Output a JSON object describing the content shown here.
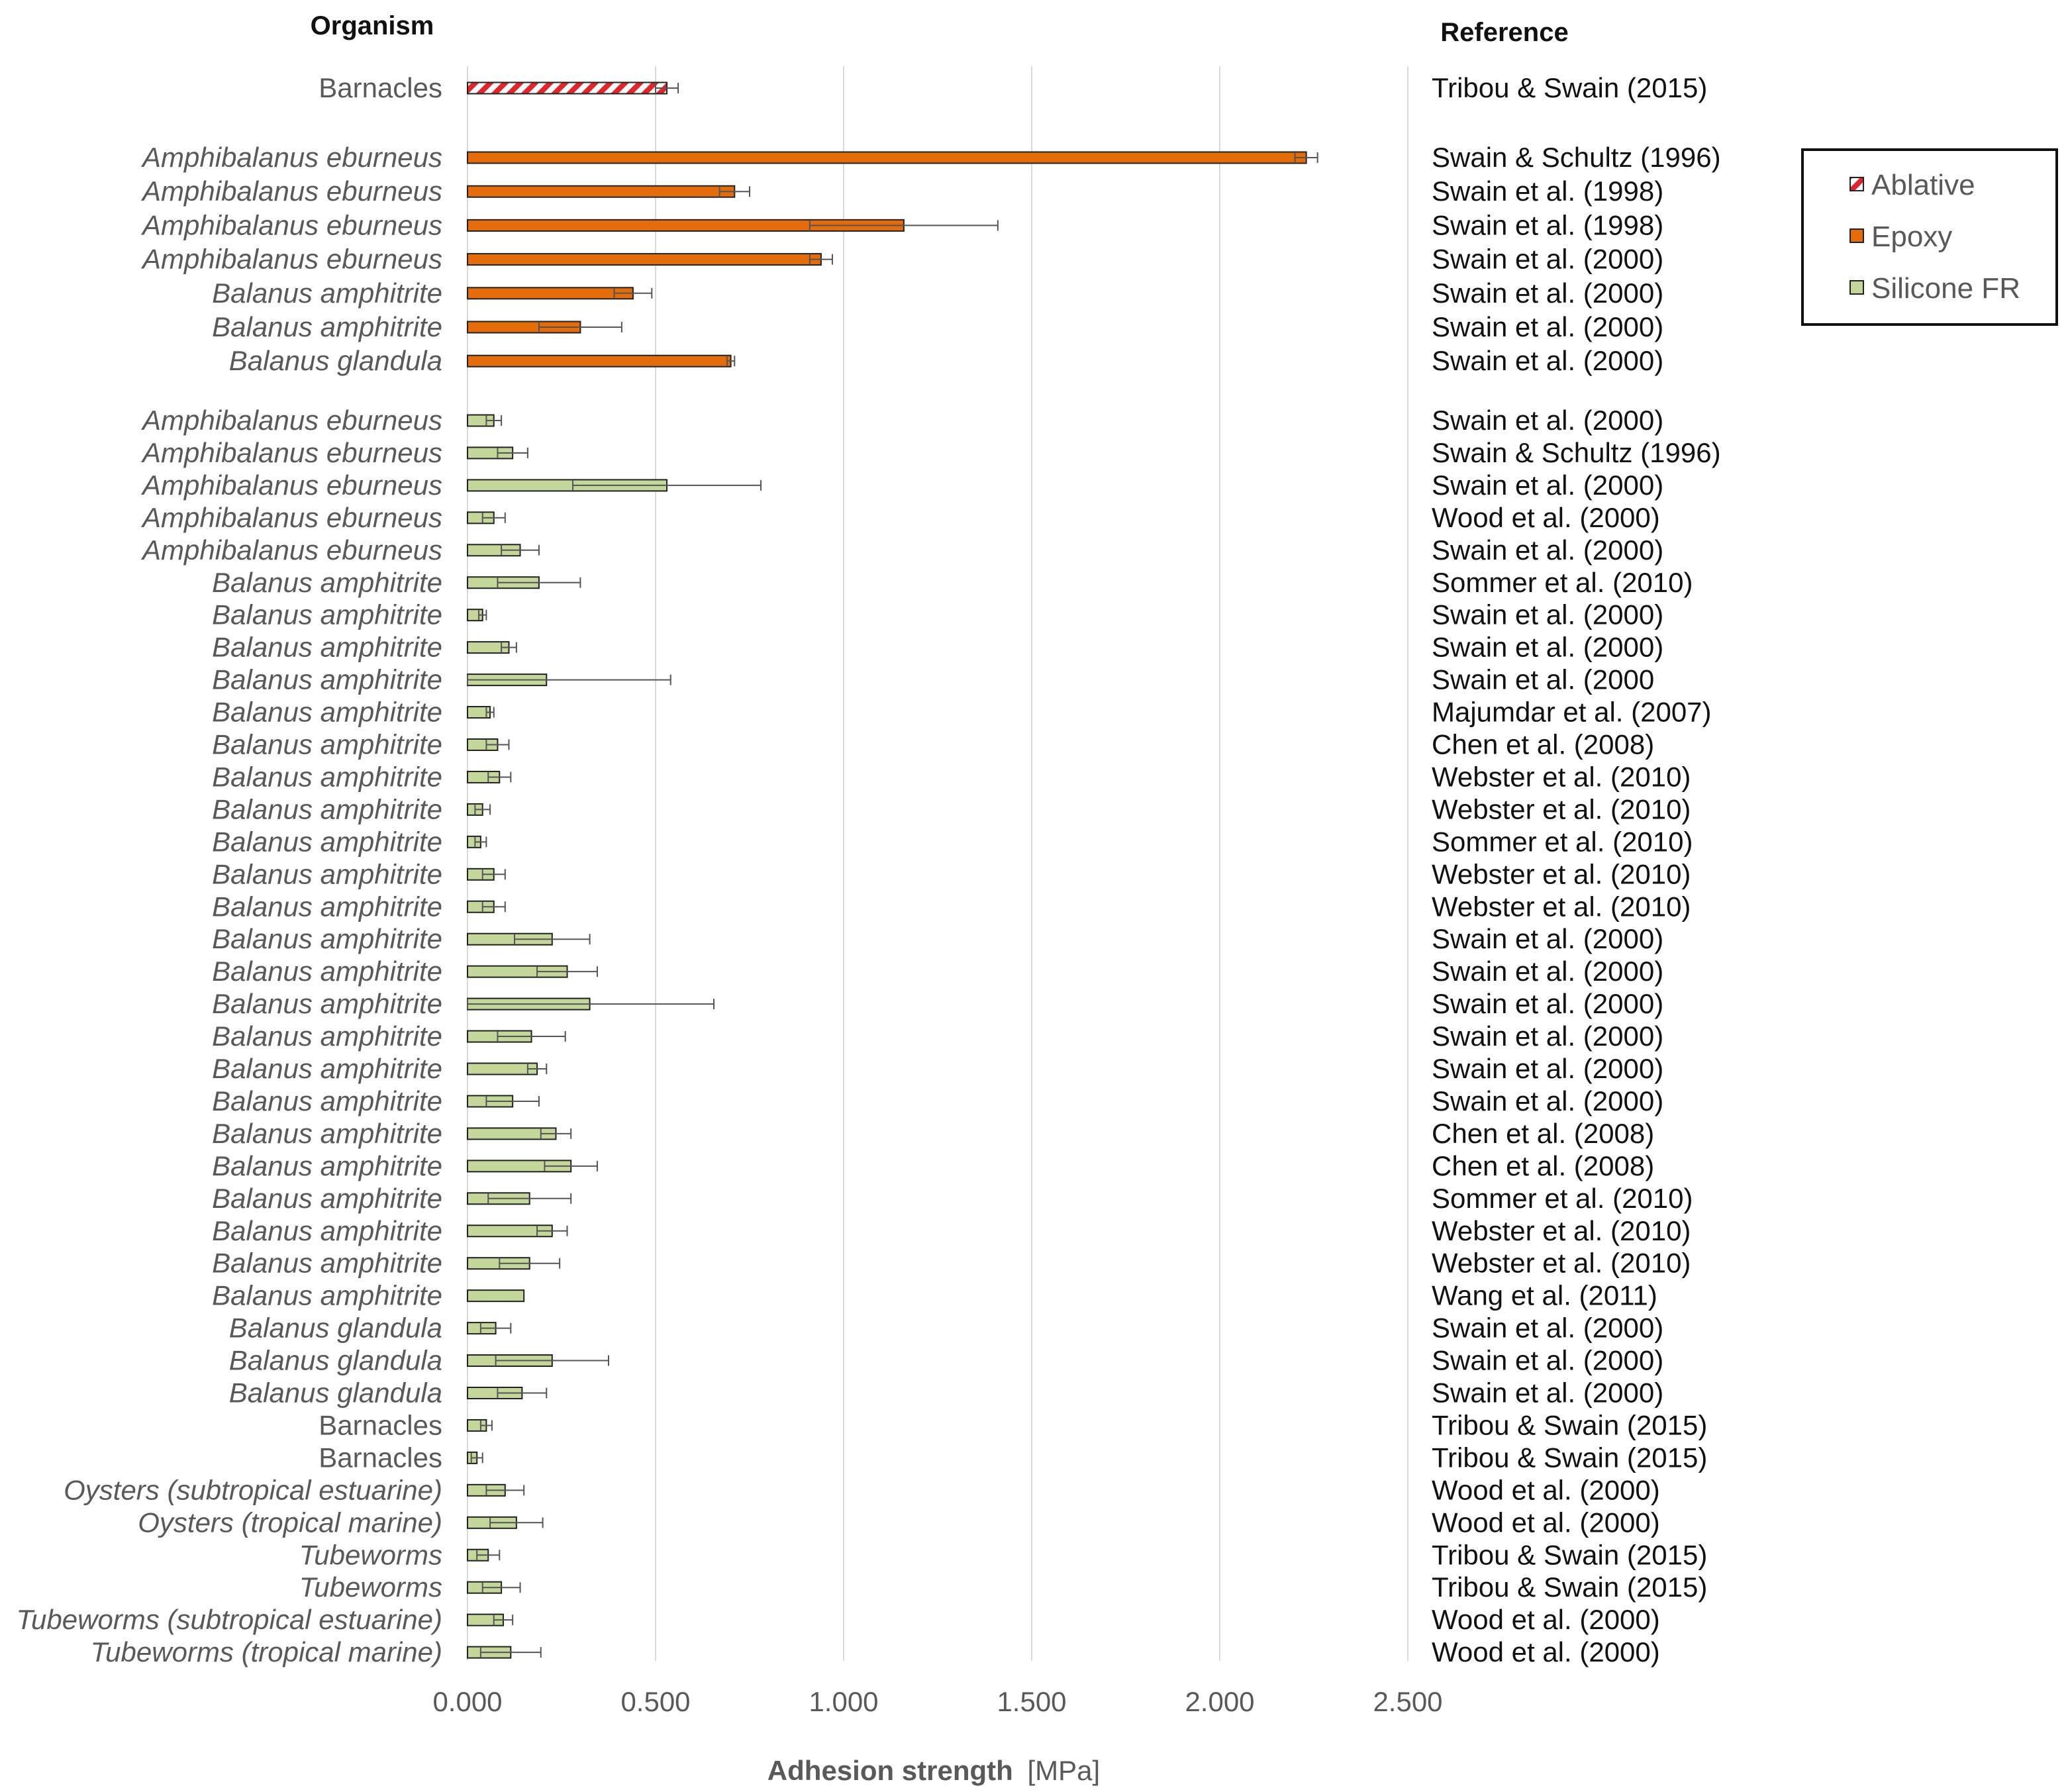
{
  "chart_data": {
    "type": "bar",
    "orientation": "horizontal",
    "headers": {
      "organism": "Organism",
      "reference": "Reference"
    },
    "xlabel_bold": "Adhesion strength",
    "xlabel_unit": "[MPa]",
    "xlim": [
      0,
      2.5
    ],
    "ticks": [
      "0.000",
      "0.500",
      "1.000",
      "1.500",
      "2.000",
      "2.500"
    ],
    "grid": true,
    "legend_position": "right",
    "colors": {
      "Ablative": "#e0262d",
      "Epoxy": "#e46c0a",
      "Silicone FR": "#c4d79b",
      "bar_edge": "#222222",
      "grid": "#d9d9d9",
      "error": "#555555"
    },
    "legend": [
      {
        "name": "Ablative",
        "icon": "hatched-square-icon"
      },
      {
        "name": "Epoxy",
        "icon": "orange-square-icon"
      },
      {
        "name": "Silicone FR",
        "icon": "green-square-icon"
      }
    ],
    "groups": [
      {
        "coating": "Ablative",
        "rows": [
          {
            "organism": "Barnacles",
            "italic": false,
            "value": 0.53,
            "error": 0.03,
            "reference": "Tribou & Swain (2015)"
          }
        ]
      },
      {
        "coating": "Epoxy",
        "rows": [
          {
            "organism": "Amphibalanus eburneus",
            "italic": true,
            "value": 2.23,
            "error": 0.03,
            "reference": "Swain & Schultz (1996)"
          },
          {
            "organism": "Amphibalanus eburneus",
            "italic": true,
            "value": 0.71,
            "error": 0.04,
            "reference": "Swain et al. (1998)"
          },
          {
            "organism": "Amphibalanus eburneus",
            "italic": true,
            "value": 1.16,
            "error": 0.25,
            "reference": "Swain et al. (1998)"
          },
          {
            "organism": "Amphibalanus eburneus",
            "italic": true,
            "value": 0.94,
            "error": 0.03,
            "reference": "Swain et al. (2000)"
          },
          {
            "organism": "Balanus amphitrite",
            "italic": true,
            "value": 0.44,
            "error": 0.05,
            "reference": "Swain et al. (2000)"
          },
          {
            "organism": "Balanus amphitrite",
            "italic": true,
            "value": 0.3,
            "error": 0.11,
            "reference": "Swain et al. (2000)"
          },
          {
            "organism": "Balanus glandula",
            "italic": true,
            "value": 0.7,
            "error": 0.01,
            "reference": "Swain et al. (2000)"
          }
        ]
      },
      {
        "coating": "Silicone FR",
        "rows": [
          {
            "organism": "Amphibalanus eburneus",
            "italic": true,
            "value": 0.07,
            "error": 0.02,
            "reference": "Swain et al. (2000)"
          },
          {
            "organism": "Amphibalanus eburneus",
            "italic": true,
            "value": 0.12,
            "error": 0.04,
            "reference": "Swain & Schultz (1996)"
          },
          {
            "organism": "Amphibalanus eburneus",
            "italic": true,
            "value": 0.53,
            "error": 0.25,
            "reference": "Swain et al. (2000)"
          },
          {
            "organism": "Amphibalanus eburneus",
            "italic": true,
            "value": 0.07,
            "error": 0.03,
            "reference": "Wood et al. (2000)"
          },
          {
            "organism": "Amphibalanus eburneus",
            "italic": true,
            "value": 0.14,
            "error": 0.05,
            "reference": "Swain et al. (2000)"
          },
          {
            "organism": "Balanus amphitrite",
            "italic": true,
            "value": 0.19,
            "error": 0.11,
            "reference": "Sommer et al. (2010)"
          },
          {
            "organism": "Balanus amphitrite",
            "italic": true,
            "value": 0.04,
            "error": 0.01,
            "reference": "Swain et al. (2000)"
          },
          {
            "organism": "Balanus amphitrite",
            "italic": true,
            "value": 0.11,
            "error": 0.02,
            "reference": "Swain et al. (2000)"
          },
          {
            "organism": "Balanus amphitrite",
            "italic": true,
            "value": 0.21,
            "error": 0.33,
            "reference": "Swain et al. (2000"
          },
          {
            "organism": "Balanus amphitrite",
            "italic": true,
            "value": 0.06,
            "error": 0.01,
            "reference": "Majumdar et al. (2007)"
          },
          {
            "organism": "Balanus amphitrite",
            "italic": true,
            "value": 0.08,
            "error": 0.03,
            "reference": "Chen et al. (2008)"
          },
          {
            "organism": "Balanus amphitrite",
            "italic": true,
            "value": 0.085,
            "error": 0.03,
            "reference": "Webster et al. (2010)"
          },
          {
            "organism": "Balanus amphitrite",
            "italic": true,
            "value": 0.04,
            "error": 0.02,
            "reference": "Webster et al. (2010)"
          },
          {
            "organism": "Balanus amphitrite",
            "italic": true,
            "value": 0.035,
            "error": 0.015,
            "reference": "Sommer et al. (2010)"
          },
          {
            "organism": "Balanus amphitrite",
            "italic": true,
            "value": 0.07,
            "error": 0.03,
            "reference": "Webster et al. (2010)"
          },
          {
            "organism": "Balanus amphitrite",
            "italic": true,
            "value": 0.07,
            "error": 0.03,
            "reference": "Webster et al. (2010)"
          },
          {
            "organism": "Balanus amphitrite",
            "italic": true,
            "value": 0.225,
            "error": 0.1,
            "reference": "Swain et al. (2000)"
          },
          {
            "organism": "Balanus amphitrite",
            "italic": true,
            "value": 0.265,
            "error": 0.08,
            "reference": "Swain et al. (2000)"
          },
          {
            "organism": "Balanus amphitrite",
            "italic": true,
            "value": 0.325,
            "error": 0.33,
            "reference": "Swain et al. (2000)"
          },
          {
            "organism": "Balanus amphitrite",
            "italic": true,
            "value": 0.17,
            "error": 0.09,
            "reference": "Swain et al. (2000)"
          },
          {
            "organism": "Balanus amphitrite",
            "italic": true,
            "value": 0.185,
            "error": 0.025,
            "reference": "Swain et al. (2000)"
          },
          {
            "organism": "Balanus amphitrite",
            "italic": true,
            "value": 0.12,
            "error": 0.07,
            "reference": "Swain et al. (2000)"
          },
          {
            "organism": "Balanus amphitrite",
            "italic": true,
            "value": 0.235,
            "error": 0.04,
            "reference": "Chen et al. (2008)"
          },
          {
            "organism": "Balanus amphitrite",
            "italic": true,
            "value": 0.275,
            "error": 0.07,
            "reference": "Chen et al. (2008)"
          },
          {
            "organism": "Balanus amphitrite",
            "italic": true,
            "value": 0.165,
            "error": 0.11,
            "reference": "Sommer et al. (2010)"
          },
          {
            "organism": "Balanus amphitrite",
            "italic": true,
            "value": 0.225,
            "error": 0.04,
            "reference": "Webster et al. (2010)"
          },
          {
            "organism": "Balanus amphitrite",
            "italic": true,
            "value": 0.165,
            "error": 0.08,
            "reference": "Webster et al. (2010)"
          },
          {
            "organism": "Balanus amphitrite",
            "italic": true,
            "value": 0.15,
            "error": 0,
            "reference": "Wang et al. (2011)"
          },
          {
            "organism": "Balanus glandula",
            "italic": true,
            "value": 0.075,
            "error": 0.04,
            "reference": "Swain et al. (2000)"
          },
          {
            "organism": "Balanus glandula",
            "italic": true,
            "value": 0.225,
            "error": 0.15,
            "reference": "Swain et al. (2000)"
          },
          {
            "organism": "Balanus glandula",
            "italic": true,
            "value": 0.145,
            "error": 0.065,
            "reference": "Swain et al. (2000)"
          },
          {
            "organism": "Barnacles",
            "italic": false,
            "value": 0.05,
            "error": 0.015,
            "reference": "Tribou & Swain (2015)"
          },
          {
            "organism": "Barnacles",
            "italic": false,
            "value": 0.025,
            "error": 0.015,
            "reference": "Tribou & Swain (2015)"
          },
          {
            "organism": "Oysters  (subtropical estuarine)",
            "italic": true,
            "value": 0.1,
            "error": 0.05,
            "reference": "Wood et al. (2000)"
          },
          {
            "organism": "Oysters  (tropical marine)",
            "italic": true,
            "value": 0.13,
            "error": 0.07,
            "reference": "Wood et al. (2000)"
          },
          {
            "organism": "Tubeworms",
            "italic": true,
            "value": 0.055,
            "error": 0.03,
            "reference": "Tribou & Swain (2015)"
          },
          {
            "organism": "Tubeworms",
            "italic": true,
            "value": 0.09,
            "error": 0.05,
            "reference": "Tribou & Swain (2015)"
          },
          {
            "organism": "Tubeworms (subtropical estuarine)",
            "italic": true,
            "value": 0.095,
            "error": 0.025,
            "reference": "Wood et al. (2000)"
          },
          {
            "organism": "Tubeworms (tropical marine)",
            "italic": true,
            "value": 0.115,
            "error": 0.08,
            "reference": "Wood et al. (2000)"
          }
        ]
      }
    ]
  }
}
